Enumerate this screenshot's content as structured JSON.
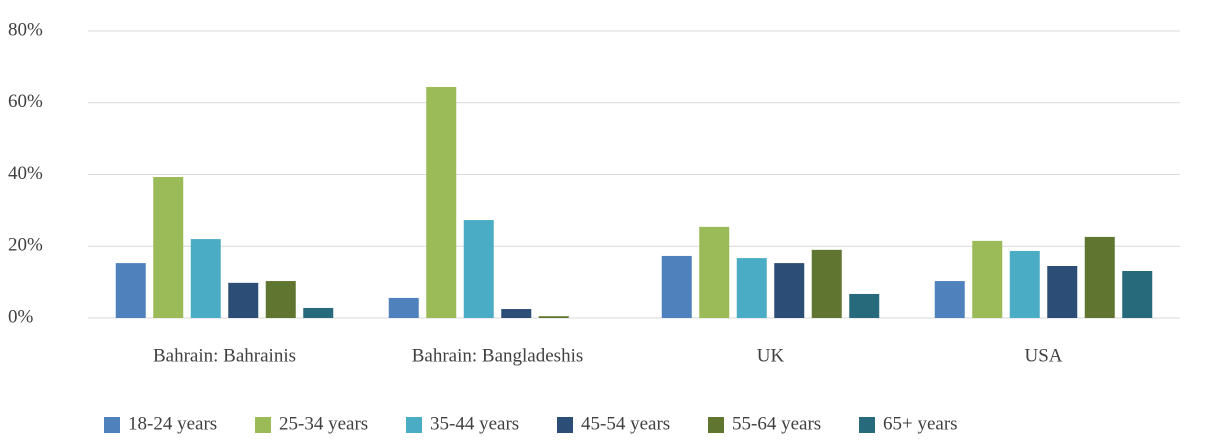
{
  "chart_data": {
    "type": "bar",
    "categories": [
      "Bahrain: Bahrainis",
      "Bahrain: Bangladeshis",
      "UK",
      "USA"
    ],
    "series": [
      {
        "name": "18-24 years",
        "color": "#4f81bd",
        "values": [
          15.3,
          5.6,
          17.3,
          10.3
        ]
      },
      {
        "name": "25-34 years",
        "color": "#9bbb59",
        "values": [
          39.3,
          64.4,
          25.4,
          21.5
        ]
      },
      {
        "name": "35-44 years",
        "color": "#4bacc6",
        "values": [
          22,
          27.3,
          16.7,
          18.7
        ]
      },
      {
        "name": "45-54 years",
        "color": "#2c4d75",
        "values": [
          9.8,
          2.5,
          15.3,
          14.5
        ]
      },
      {
        "name": "55-64 years",
        "color": "#5f7530",
        "values": [
          10.3,
          0.5,
          19,
          22.6
        ]
      },
      {
        "name": "65+ years",
        "color": "#276a7c",
        "values": [
          2.8,
          0,
          6.7,
          13.1
        ]
      }
    ],
    "ylim": [
      0,
      80
    ],
    "yticks": [
      {
        "value": 0,
        "label": "0%"
      },
      {
        "value": 20,
        "label": "20%"
      },
      {
        "value": 40,
        "label": "40%"
      },
      {
        "value": 60,
        "label": "60%"
      },
      {
        "value": 80,
        "label": "80%"
      }
    ],
    "grid": true,
    "legend": "bottom"
  }
}
